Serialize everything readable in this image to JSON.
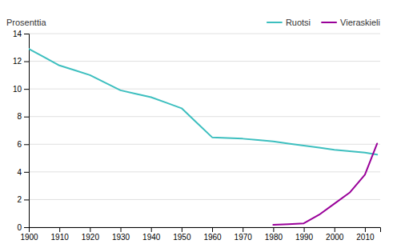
{
  "chart_data": {
    "type": "line",
    "y_label": "Prosenttia",
    "series": [
      {
        "name": "Ruotsi",
        "color": "#3dbfbf",
        "x": [
          1900,
          1905,
          1910,
          1915,
          1920,
          1925,
          1930,
          1935,
          1940,
          1945,
          1950,
          1955,
          1960,
          1965,
          1970,
          1975,
          1980,
          1985,
          1990,
          1995,
          2000,
          2005,
          2010,
          2014
        ],
        "values": [
          12.9,
          12.3,
          11.7,
          11.35,
          11.0,
          10.45,
          9.9,
          9.65,
          9.4,
          9.0,
          8.6,
          7.55,
          6.5,
          6.45,
          6.4,
          6.3,
          6.2,
          6.05,
          5.9,
          5.75,
          5.6,
          5.5,
          5.4,
          5.25
        ]
      },
      {
        "name": "Vieraskieli",
        "color": "#990099",
        "x": [
          1980,
          1985,
          1990,
          1995,
          2000,
          2005,
          2010,
          2014
        ],
        "values": [
          0.18,
          0.22,
          0.28,
          0.9,
          1.7,
          2.5,
          3.8,
          6.05
        ]
      }
    ],
    "xlim": [
      1900,
      2015
    ],
    "ylim": [
      0,
      14
    ],
    "xticks": [
      1900,
      1910,
      1920,
      1930,
      1940,
      1950,
      1960,
      1970,
      1980,
      1990,
      2000,
      2010
    ],
    "yticks": [
      0,
      2,
      4,
      6,
      8,
      10,
      12,
      14
    ],
    "grid": true,
    "legend": "upper right"
  }
}
